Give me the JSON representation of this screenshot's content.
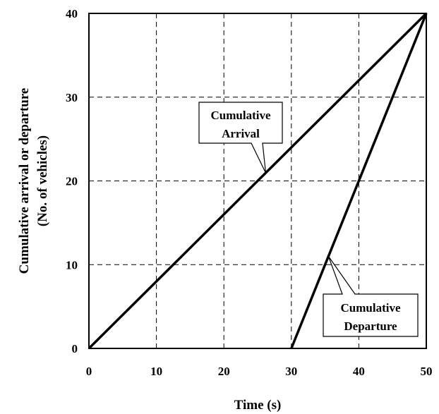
{
  "chart_data": {
    "type": "line",
    "xlabel": "Time (s)",
    "ylabel_lines": [
      "Cumulative arrival or departure",
      "(No. of vehicles)"
    ],
    "xlim": [
      0,
      50
    ],
    "ylim": [
      0,
      40
    ],
    "xticks": [
      0,
      10,
      20,
      30,
      40,
      50
    ],
    "yticks": [
      0,
      10,
      20,
      30,
      40
    ],
    "grid": true,
    "series": [
      {
        "name": "Cumulative Arrival",
        "x": [
          0,
          50
        ],
        "y": [
          0,
          40
        ]
      },
      {
        "name": "Cumulative Departure",
        "x": [
          30,
          50
        ],
        "y": [
          0,
          40
        ]
      }
    ],
    "annotations": [
      {
        "series": 0,
        "lines": [
          "Cumulative",
          "Arrival"
        ]
      },
      {
        "series": 1,
        "lines": [
          "Cumulative",
          "Departure"
        ]
      }
    ]
  }
}
